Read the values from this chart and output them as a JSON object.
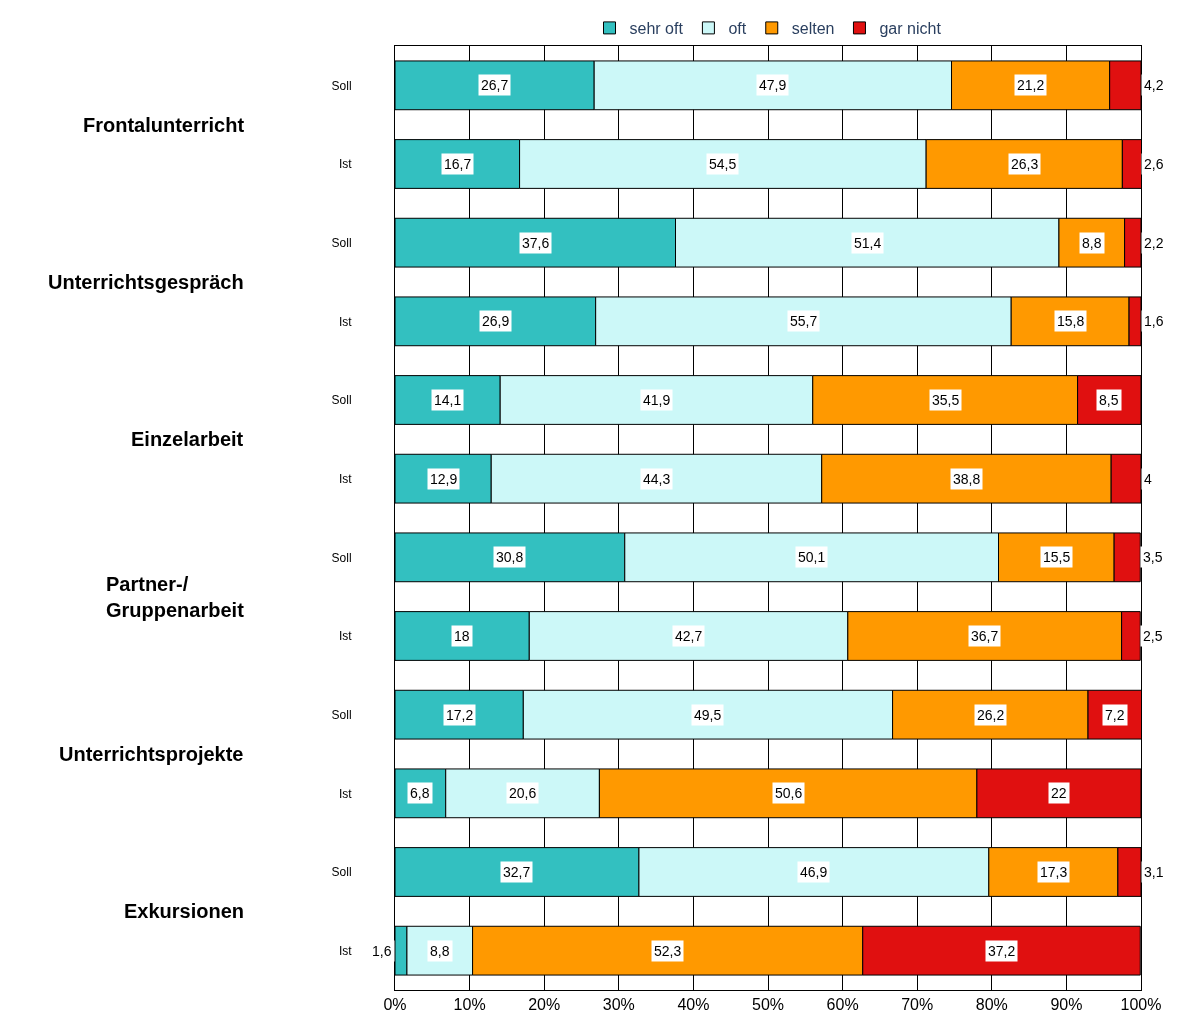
{
  "chart_data": {
    "type": "bar",
    "orientation": "horizontal",
    "stacked": true,
    "categories": [
      "Soll",
      "Ist",
      "Soll",
      "Ist",
      "Soll",
      "Ist",
      "Soll",
      "Ist",
      "Soll",
      "Ist",
      "Soll",
      "Ist"
    ],
    "series": [
      {
        "name": "sehr oft",
        "color": "#33c0c0",
        "values": [
          26.7,
          16.7,
          37.6,
          26.9,
          14.1,
          12.9,
          30.8,
          18,
          17.2,
          6.8,
          32.7,
          1.6
        ],
        "value_labels": [
          "26,7",
          "16,7",
          "37,6",
          "26,9",
          "14,1",
          "12,9",
          "30,8",
          "18",
          "17,2",
          "6,8",
          "32,7",
          "1,6"
        ]
      },
      {
        "name": "oft",
        "color": "#ccf8f8",
        "values": [
          47.9,
          54.5,
          51.4,
          55.7,
          41.9,
          44.3,
          50.1,
          42.7,
          49.5,
          20.6,
          46.9,
          8.8
        ],
        "value_labels": [
          "47,9",
          "54,5",
          "51,4",
          "55,7",
          "41,9",
          "44,3",
          "50,1",
          "42,7",
          "49,5",
          "20,6",
          "46,9",
          "8,8"
        ]
      },
      {
        "name": "selten",
        "color": "#ff9900",
        "values": [
          21.2,
          26.3,
          8.8,
          15.8,
          35.5,
          38.8,
          15.5,
          36.7,
          26.2,
          50.6,
          17.3,
          52.3
        ],
        "value_labels": [
          "21,2",
          "26,3",
          "8,8",
          "15,8",
          "35,5",
          "38,8",
          "15,5",
          "36,7",
          "26,2",
          "50,6",
          "17,3",
          "52,3"
        ]
      },
      {
        "name": "gar nicht",
        "color": "#e01010",
        "values": [
          4.2,
          2.6,
          2.2,
          1.6,
          8.5,
          4,
          3.5,
          2.5,
          7.2,
          22,
          3.1,
          37.2
        ],
        "value_labels": [
          "4,2",
          "2,6",
          "2,2",
          "1,6",
          "8,5",
          "4",
          "3,5",
          "2,5",
          "7,2",
          "22",
          "3,1",
          "37,2"
        ]
      }
    ],
    "annotations": [
      "Frontalunterricht",
      "Unterrichtsgespräch",
      "Einzelarbeit",
      "Partner-/\nGruppenarbeit",
      "Unterrichtsprojekte",
      "Exkursionen"
    ],
    "xlim": [
      0,
      100
    ],
    "xticks": [
      {
        "value": 0,
        "label": "0%"
      },
      {
        "value": 10,
        "label": "10%"
      },
      {
        "value": 20,
        "label": "20%"
      },
      {
        "value": 30,
        "label": "30%"
      },
      {
        "value": 40,
        "label": "40%"
      },
      {
        "value": 50,
        "label": "50%"
      },
      {
        "value": 60,
        "label": "60%"
      },
      {
        "value": 70,
        "label": "70%"
      },
      {
        "value": 80,
        "label": "80%"
      },
      {
        "value": 90,
        "label": "90%"
      },
      {
        "value": 100,
        "label": "100%"
      }
    ],
    "grid": "x",
    "legend": "top"
  }
}
